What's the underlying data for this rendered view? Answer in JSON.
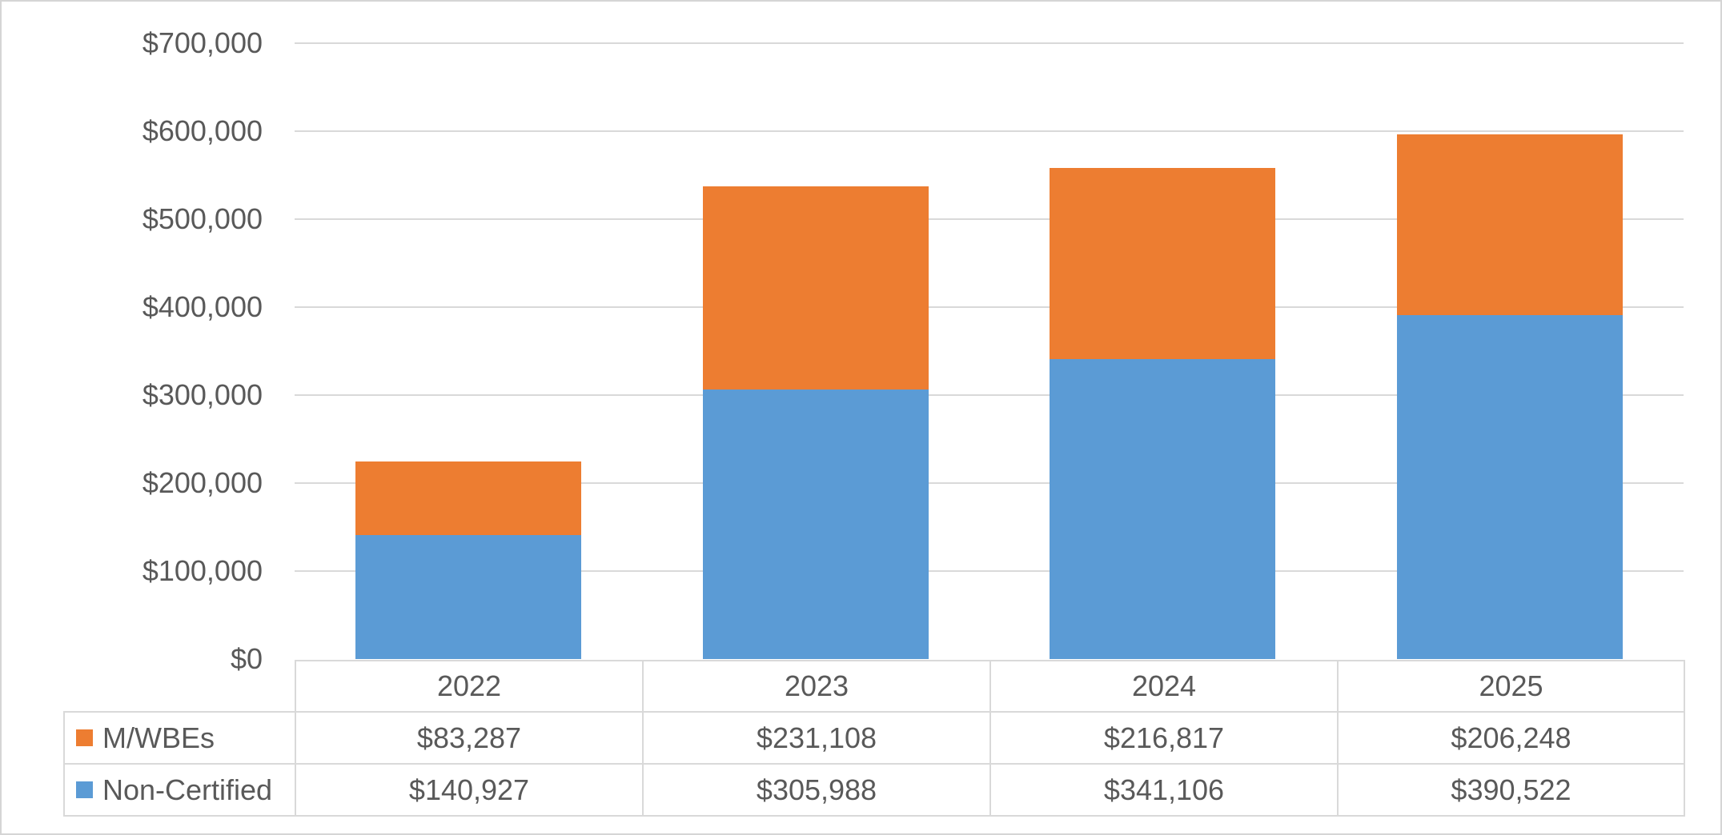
{
  "chart_data": {
    "type": "bar",
    "stacked": true,
    "title": "",
    "xlabel": "",
    "ylabel": "",
    "categories": [
      "2022",
      "2023",
      "2024",
      "2025"
    ],
    "series": [
      {
        "name": "M/WBEs",
        "color": "#ED7D31",
        "stack_position": "top",
        "values": [
          83287,
          231108,
          216817,
          206248
        ],
        "labels": [
          "$83,287",
          "$231,108",
          "$216,817",
          "$206,248"
        ]
      },
      {
        "name": "Non-Certified",
        "color": "#5B9BD5",
        "stack_position": "bottom",
        "values": [
          140927,
          305988,
          341106,
          390522
        ],
        "labels": [
          "$140,927",
          "$305,988",
          "$341,106",
          "$390,522"
        ]
      }
    ],
    "y_axis": {
      "min": 0,
      "max": 700000,
      "tick_interval": 100000,
      "tick_values": [
        700000,
        600000,
        500000,
        400000,
        300000,
        200000,
        100000,
        0
      ],
      "tick_labels": [
        "$700,000",
        "$600,000",
        "$500,000",
        "$400,000",
        "$300,000",
        "$200,000",
        "$100,000",
        "$0"
      ]
    },
    "grid": true,
    "legend_position": "data-table-left-column"
  },
  "colors": {
    "mwbes": "#ED7D31",
    "non_certified": "#5B9BD5",
    "gridline": "#D9D9D9",
    "text": "#595959",
    "frame_border": "#D5D5D5",
    "background": "#FFFFFF"
  }
}
